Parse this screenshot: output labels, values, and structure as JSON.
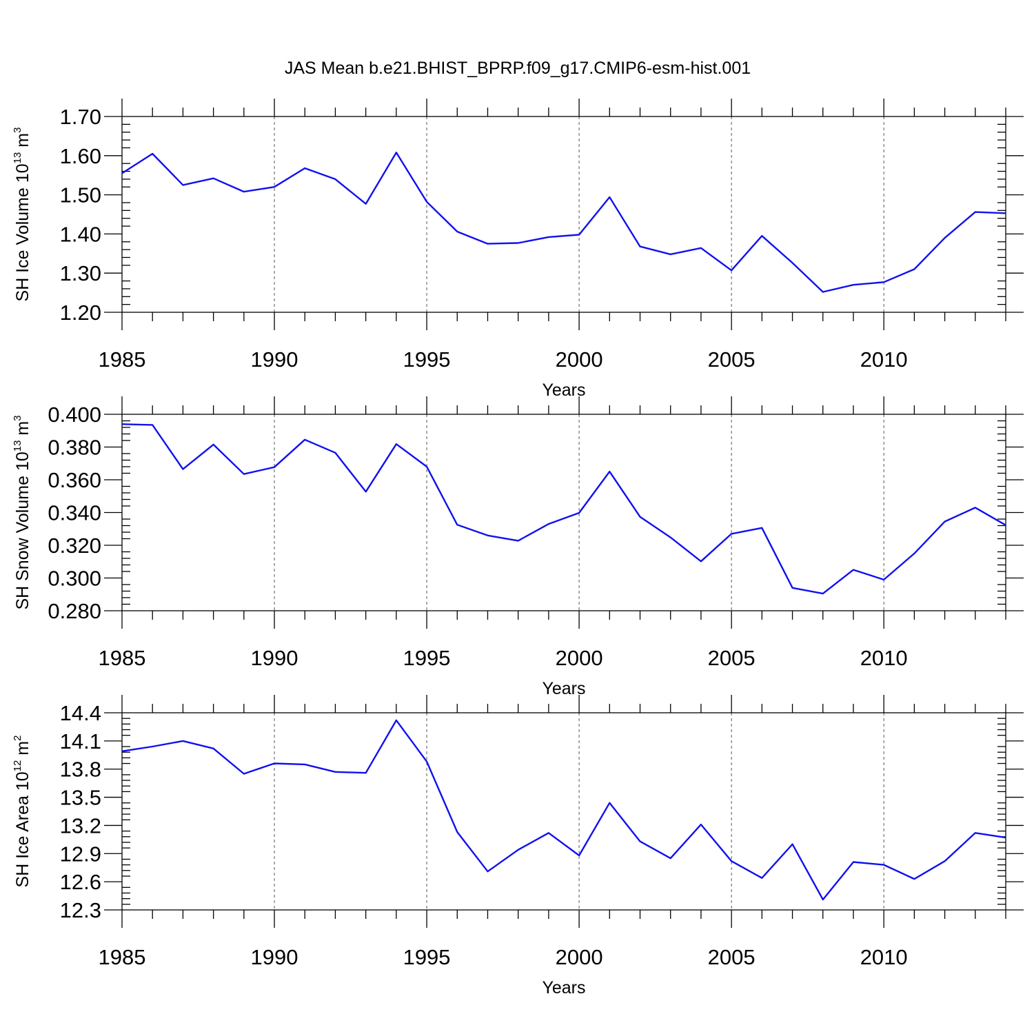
{
  "title": "JAS Mean b.e21.BHIST_BPRP.f09_g17.CMIP6-esm-hist.001",
  "line_color": "#1010f0",
  "chart_data": [
    {
      "type": "line",
      "ylabel_prefix": "SH Ice Volume 10",
      "ylabel_exp": "13",
      "ylabel_unit": " m",
      "ylabel_unit_exp": "3",
      "xlabel": "Years",
      "xlim": [
        1985,
        2014
      ],
      "ylim": [
        1.2,
        1.7
      ],
      "xticks": [
        "1985",
        "1990",
        "1995",
        "2000",
        "2005",
        "2010"
      ],
      "yticks": [
        "1.20",
        "1.30",
        "1.40",
        "1.50",
        "1.60",
        "1.70"
      ],
      "grid": "vertical dashed at major x ticks",
      "x": [
        1985,
        1986,
        1987,
        1988,
        1989,
        1990,
        1991,
        1992,
        1993,
        1994,
        1995,
        1996,
        1997,
        1998,
        1999,
        2000,
        2001,
        2002,
        2003,
        2004,
        2005,
        2006,
        2007,
        2008,
        2009,
        2010,
        2011,
        2012,
        2013,
        2014
      ],
      "values": [
        1.555,
        1.605,
        1.525,
        1.542,
        1.508,
        1.52,
        1.568,
        1.54,
        1.477,
        1.608,
        1.482,
        1.406,
        1.375,
        1.377,
        1.392,
        1.398,
        1.494,
        1.368,
        1.348,
        1.364,
        1.307,
        1.395,
        1.326,
        1.252,
        1.27,
        1.277,
        1.31,
        1.39,
        1.456,
        1.453
      ]
    },
    {
      "type": "line",
      "ylabel_prefix": "SH Snow Volume 10",
      "ylabel_exp": "13",
      "ylabel_unit": " m",
      "ylabel_unit_exp": "3",
      "xlabel": "Years",
      "xlim": [
        1985,
        2014
      ],
      "ylim": [
        0.28,
        0.4
      ],
      "xticks": [
        "1985",
        "1990",
        "1995",
        "2000",
        "2005",
        "2010"
      ],
      "yticks": [
        "0.280",
        "0.300",
        "0.320",
        "0.340",
        "0.360",
        "0.380",
        "0.400"
      ],
      "grid": "vertical dashed at major x ticks",
      "x": [
        1985,
        1986,
        1987,
        1988,
        1989,
        1990,
        1991,
        1992,
        1993,
        1994,
        1995,
        1996,
        1997,
        1998,
        1999,
        2000,
        2001,
        2002,
        2003,
        2004,
        2005,
        2006,
        2007,
        2008,
        2009,
        2010,
        2011,
        2012,
        2013,
        2014
      ],
      "values": [
        0.394,
        0.3935,
        0.3665,
        0.3815,
        0.3635,
        0.3677,
        0.3845,
        0.3765,
        0.3527,
        0.3818,
        0.368,
        0.3325,
        0.326,
        0.3228,
        0.333,
        0.3398,
        0.365,
        0.3374,
        0.3248,
        0.3102,
        0.327,
        0.3306,
        0.294,
        0.2905,
        0.305,
        0.299,
        0.315,
        0.3345,
        0.343,
        0.3323
      ]
    },
    {
      "type": "line",
      "ylabel_prefix": "SH Ice Area 10",
      "ylabel_exp": "12",
      "ylabel_unit": " m",
      "ylabel_unit_exp": "2",
      "xlabel": "Years",
      "xlim": [
        1985,
        2014
      ],
      "ylim": [
        12.3,
        14.4
      ],
      "xticks": [
        "1985",
        "1990",
        "1995",
        "2000",
        "2005",
        "2010"
      ],
      "yticks": [
        "12.3",
        "12.6",
        "12.9",
        "13.2",
        "13.5",
        "13.8",
        "14.1",
        "14.4"
      ],
      "grid": "vertical dashed at major x ticks",
      "x": [
        1985,
        1986,
        1987,
        1988,
        1989,
        1990,
        1991,
        1992,
        1993,
        1994,
        1995,
        1996,
        1997,
        1998,
        1999,
        2000,
        2001,
        2002,
        2003,
        2004,
        2005,
        2006,
        2007,
        2008,
        2009,
        2010,
        2011,
        2012,
        2013,
        2014
      ],
      "values": [
        13.99,
        14.04,
        14.1,
        14.02,
        13.75,
        13.86,
        13.85,
        13.77,
        13.76,
        14.32,
        13.88,
        13.13,
        12.71,
        12.94,
        13.12,
        12.88,
        13.44,
        13.03,
        12.85,
        13.21,
        12.82,
        12.64,
        13.0,
        12.41,
        12.81,
        12.78,
        12.63,
        12.82,
        13.12,
        13.07
      ]
    }
  ]
}
